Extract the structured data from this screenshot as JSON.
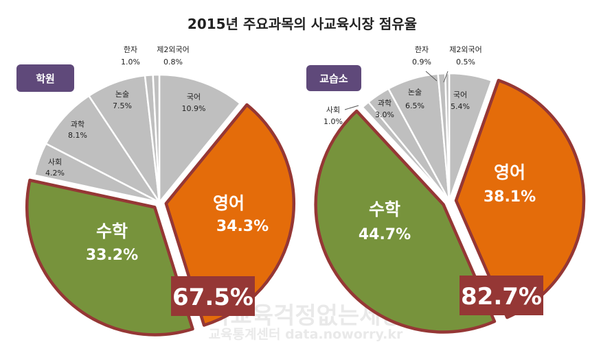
{
  "title": "2015년 주요과목의 사교육시장 점유율",
  "watermark": {
    "line1": "사교육걱정없는세상",
    "line2": "교육통계센터 data.noworry.kr"
  },
  "colors": {
    "english": "#E46C0A",
    "math": "#77933C",
    "other": "#BFBFBF",
    "badge": "#5F497A",
    "highlight_border": "#953735",
    "total_box": "#953735"
  },
  "chart_data": [
    {
      "type": "pie",
      "label": "학원",
      "total_label": "67.5%",
      "slices": [
        {
          "name": "국어",
          "value": 10.9,
          "pct_label": "10.9%"
        },
        {
          "name": "영어",
          "value": 34.3,
          "pct_label": "34.3%"
        },
        {
          "name": "수학",
          "value": 33.2,
          "pct_label": "33.2%"
        },
        {
          "name": "사회",
          "value": 4.2,
          "pct_label": "4.2%"
        },
        {
          "name": "과학",
          "value": 8.1,
          "pct_label": "8.1%"
        },
        {
          "name": "논술",
          "value": 7.5,
          "pct_label": "7.5%"
        },
        {
          "name": "한자",
          "value": 1.0,
          "pct_label": "1.0%"
        },
        {
          "name": "제2외국어",
          "value": 0.8,
          "pct_label": "0.8%"
        }
      ]
    },
    {
      "type": "pie",
      "label": "교습소",
      "total_label": "82.7%",
      "slices": [
        {
          "name": "국어",
          "value": 5.4,
          "pct_label": "5.4%"
        },
        {
          "name": "영어",
          "value": 38.1,
          "pct_label": "38.1%"
        },
        {
          "name": "수학",
          "value": 44.7,
          "pct_label": "44.7%"
        },
        {
          "name": "사회",
          "value": 1.0,
          "pct_label": "1.0%"
        },
        {
          "name": "과학",
          "value": 3.0,
          "pct_label": "3.0%"
        },
        {
          "name": "논술",
          "value": 6.5,
          "pct_label": "6.5%"
        },
        {
          "name": "한자",
          "value": 0.9,
          "pct_label": "0.9%"
        },
        {
          "name": "제2외국어",
          "value": 0.5,
          "pct_label": "0.5%"
        }
      ]
    }
  ]
}
